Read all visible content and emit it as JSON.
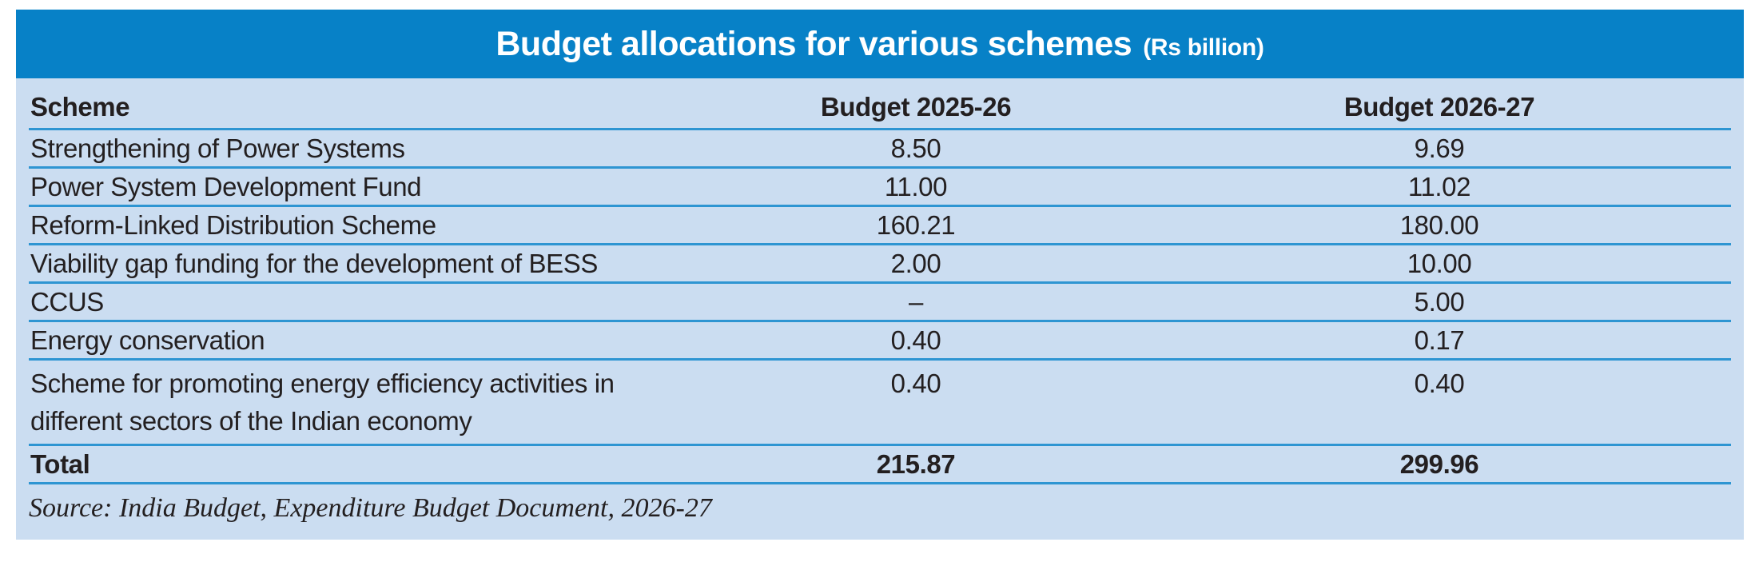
{
  "colors": {
    "header_bar": "#0781c7",
    "panel_bg": "#cbddf1",
    "rule_line": "#2e95d2",
    "text": "#231f20",
    "title_text": "#ffffff",
    "page_bg": "#ffffff"
  },
  "title": {
    "main": "Budget allocations for various schemes",
    "unit": "(Rs billion)"
  },
  "table": {
    "columns": [
      "Scheme",
      "Budget 2025-26",
      "Budget 2026-27"
    ],
    "rows": [
      {
        "scheme": "Strengthening of Power Systems",
        "b2025_26": "8.50",
        "b2026_27": "9.69"
      },
      {
        "scheme": "Power System Development Fund",
        "b2025_26": "11.00",
        "b2026_27": "11.02"
      },
      {
        "scheme": "Reform-Linked Distribution Scheme",
        "b2025_26": "160.21",
        "b2026_27": "180.00"
      },
      {
        "scheme": "Viability gap funding for the development of BESS",
        "b2025_26": "2.00",
        "b2026_27": "10.00"
      },
      {
        "scheme": "CCUS",
        "b2025_26": "–",
        "b2026_27": "5.00"
      },
      {
        "scheme": "Energy conservation",
        "b2025_26": "0.40",
        "b2026_27": "0.17"
      },
      {
        "scheme": "Scheme for promoting energy efficiency activities in",
        "scheme_line2": "different sectors of the Indian economy",
        "b2025_26": "0.40",
        "b2026_27": "0.40"
      }
    ],
    "total": {
      "label": "Total",
      "b2025_26": "215.87",
      "b2026_27": "299.96"
    }
  },
  "source": "Source: India Budget, Expenditure Budget Document, 2026-27",
  "chart_data": {
    "type": "table",
    "title": "Budget allocations for various schemes (Rs billion)",
    "columns": [
      "Scheme",
      "Budget 2025-26",
      "Budget 2026-27"
    ],
    "rows": [
      [
        "Strengthening of Power Systems",
        8.5,
        9.69
      ],
      [
        "Power System Development Fund",
        11.0,
        11.02
      ],
      [
        "Reform-Linked Distribution Scheme",
        160.21,
        180.0
      ],
      [
        "Viability gap funding for the development of BESS",
        2.0,
        10.0
      ],
      [
        "CCUS",
        null,
        5.0
      ],
      [
        "Energy conservation",
        0.4,
        0.17
      ],
      [
        "Scheme for promoting energy efficiency activities in different sectors of the Indian economy",
        0.4,
        0.4
      ],
      [
        "Total",
        215.87,
        299.96
      ]
    ],
    "notes": "CCUS has no Budget 2025-26 allocation (shown as –)",
    "source": "Source: India Budget, Expenditure Budget Document, 2026-27"
  }
}
